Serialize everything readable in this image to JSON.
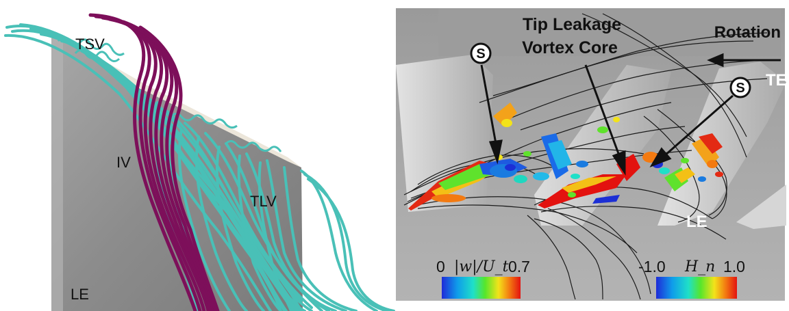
{
  "left_panel": {
    "labels": {
      "tsv": "TSV",
      "iv": "IV",
      "tlv": "TLV",
      "le": "LE"
    },
    "colors": {
      "blade": "#8f8f8f",
      "blade_edge": "#b9b9b9",
      "blade_tip": "#e8e2d6",
      "streamline_cyan": "#49c0b7",
      "streamline_purple": "#7d0f5a"
    }
  },
  "right_panel": {
    "annotations": {
      "tip_leakage_line1": "Tip Leakage",
      "tip_leakage_line2": "Vortex Core",
      "rotation": "Rotation",
      "s_left": "S",
      "s_right": "S",
      "te": "TE",
      "le": "LE"
    },
    "colorbar_w": {
      "min": "0",
      "label": "|w|/U_t",
      "max": "0.7"
    },
    "colorbar_h": {
      "min": "-1.0",
      "label": "H_n",
      "max": "1.0"
    },
    "colors": {
      "background": "#a3a3a3",
      "blade": "#cfcfcf",
      "blade_shadow": "#8c8c8c",
      "streamline": "#1a1a1a",
      "annotation_text": "#111111",
      "annotation_light": "#ffffff"
    }
  }
}
